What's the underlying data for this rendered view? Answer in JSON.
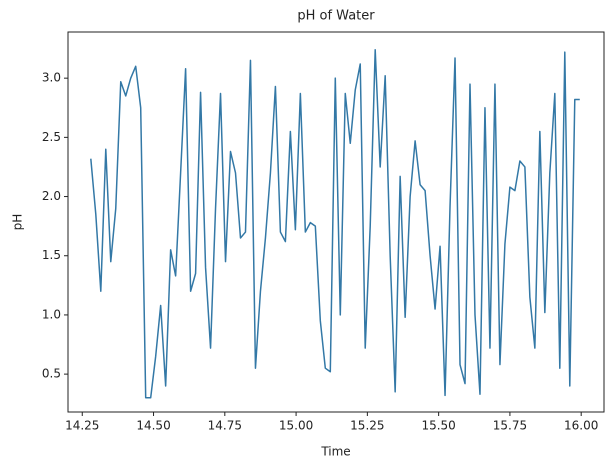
{
  "chart_data": {
    "type": "line",
    "title": "pH of Water",
    "x_label": "Time",
    "y_label": "pH",
    "color": "#3378a6",
    "x": [
      14.28,
      14.2975,
      14.315,
      14.3325,
      14.35,
      14.3675,
      14.385,
      14.4025,
      14.42,
      14.4375,
      14.455,
      14.4725,
      14.49,
      14.5075,
      14.525,
      14.5425,
      14.56,
      14.5775,
      14.595,
      14.6125,
      14.63,
      14.6475,
      14.665,
      14.6825,
      14.7,
      14.7175,
      14.735,
      14.7525,
      14.77,
      14.7875,
      14.805,
      14.8225,
      14.84,
      14.8575,
      14.875,
      14.8925,
      14.91,
      14.9275,
      14.945,
      14.9625,
      14.98,
      14.9975,
      15.015,
      15.0325,
      15.05,
      15.0675,
      15.085,
      15.1025,
      15.12,
      15.1375,
      15.155,
      15.1725,
      15.19,
      15.2075,
      15.225,
      15.2425,
      15.26,
      15.2775,
      15.295,
      15.3125,
      15.33,
      15.3475,
      15.365,
      15.3825,
      15.4,
      15.4175,
      15.435,
      15.4525,
      15.47,
      15.4875,
      15.505,
      15.5225,
      15.54,
      15.5575,
      15.575,
      15.5925,
      15.61,
      15.6275,
      15.645,
      15.6625,
      15.68,
      15.6975,
      15.715,
      15.7325,
      15.75,
      15.7675,
      15.785,
      15.8025,
      15.82,
      15.8375,
      15.855,
      15.8725,
      15.89,
      15.9075,
      15.925,
      15.9425,
      15.96,
      15.9775,
      15.995
    ],
    "values": [
      2.32,
      1.85,
      1.2,
      2.4,
      1.45,
      1.9,
      2.97,
      2.85,
      3.0,
      3.1,
      2.75,
      0.3,
      0.3,
      0.65,
      1.08,
      0.4,
      1.55,
      1.33,
      2.2,
      3.08,
      1.2,
      1.35,
      2.88,
      1.4,
      0.72,
      1.9,
      2.87,
      1.45,
      2.38,
      2.2,
      1.65,
      1.7,
      3.15,
      0.55,
      1.2,
      1.65,
      2.2,
      2.93,
      1.7,
      1.62,
      2.55,
      1.72,
      2.87,
      1.7,
      1.78,
      1.75,
      0.95,
      0.55,
      0.52,
      3.0,
      1.0,
      2.87,
      2.45,
      2.9,
      3.12,
      0.72,
      1.75,
      3.24,
      2.25,
      3.02,
      1.5,
      0.35,
      2.17,
      0.98,
      2.0,
      2.47,
      2.1,
      2.05,
      1.5,
      1.05,
      1.58,
      0.32,
      1.92,
      3.17,
      0.58,
      0.42,
      2.95,
      1.0,
      0.33,
      2.75,
      0.72,
      2.95,
      0.58,
      1.6,
      2.08,
      2.05,
      2.3,
      2.25,
      1.15,
      0.72,
      2.55,
      1.02,
      2.2,
      2.87,
      0.55,
      3.22,
      0.4,
      2.82,
      2.82
    ],
    "xlim": [
      14.2,
      16.08
    ],
    "ylim": [
      0.18,
      3.39
    ],
    "xticks": [
      14.25,
      {
        "value": 14.5,
        "label": "14.50"
      },
      14.75,
      {
        "value": 15,
        "label": "15.00"
      },
      15.25,
      {
        "value": 15.5,
        "label": "15.50"
      },
      15.75,
      {
        "value": 16,
        "label": "16.00"
      }
    ],
    "yticks": [
      0.5,
      {
        "value": 1,
        "label": "1.0"
      },
      1.5,
      {
        "value": 2,
        "label": "2.0"
      },
      2.5,
      {
        "value": 3,
        "label": "3.0"
      }
    ]
  }
}
